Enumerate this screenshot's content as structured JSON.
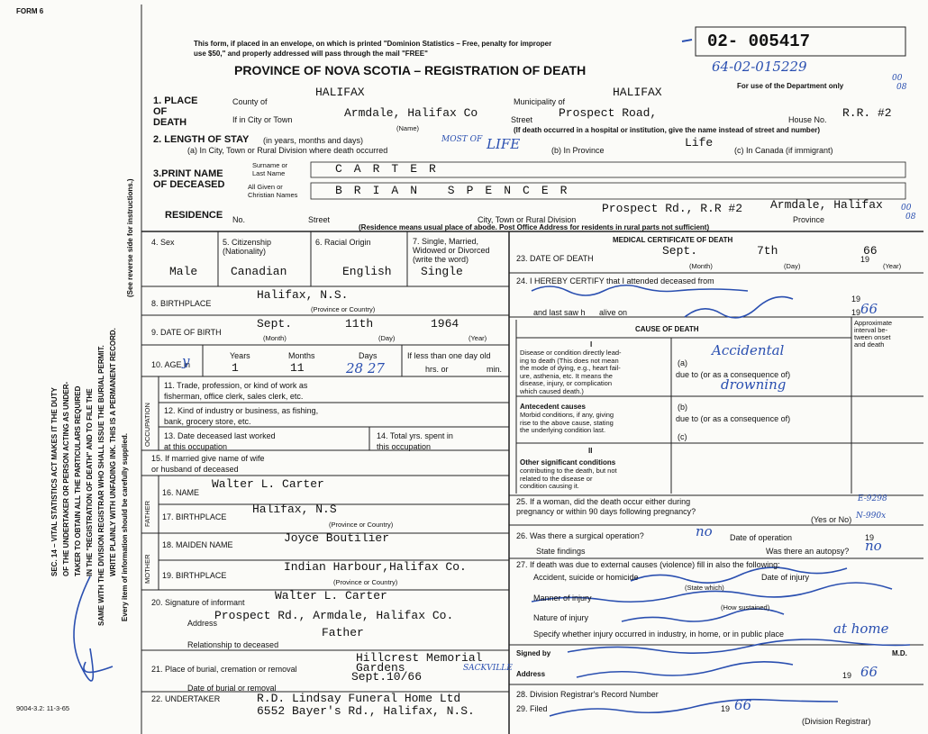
{
  "form_label": "FORM 6",
  "header": {
    "notice": [
      "This form, if placed in an envelope, on which is printed \"Dominion Statistics – Free, penalty for improper",
      "use $50,\" and properly addressed will pass through the mail \"FREE\""
    ],
    "title": "PROVINCE OF NOVA SCOTIA – REGISTRATION OF DEATH",
    "registration_number": "02- 005417",
    "file_number": "64-02-015229",
    "department_note": "For use of the Department only",
    "margin_notes": [
      "00",
      "08",
      "00",
      "08"
    ]
  },
  "instructions": {
    "lines": [
      "SEC. 14 – VITAL STATISTICS ACT MAKES IT THE DUTY",
      "OF THE UNDERTAKER OR PERSON ACTING AS UNDER-",
      "TAKER TO OBTAIN ALL THE PARTICULARS REQUIRED",
      "IN THE \"REGISTRATION OF DEATH\" AND TO FILE THE",
      "SAME WITH THE DIVISION REGISTRAR WHO SHALL ISSUE THE BURIAL PERMIT.",
      "WRITE PLAINLY WITH UNFADING INK. THIS IS A PERMANENT RECORD."
    ],
    "reverse_note": "(See reverse side for instructions.)",
    "supply_note": "Every item of information should be carefully supplied."
  },
  "place_of_death": {
    "heading": [
      "1. PLACE",
      "OF",
      "DEATH"
    ],
    "county_label": "County of",
    "county": "HALIFAX",
    "municipality_label": "Municipality of",
    "municipality": "HALIFAX",
    "city_label": "If in City or Town",
    "city": "Armdale, Halifax Co",
    "name_label": "(Name)",
    "street_label": "Street",
    "street": "Prospect Road,",
    "house_label": "House No.",
    "house": "R.R. #2",
    "institution_note": "(If death occurred in a hospital or institution, give the name instead of street and number)"
  },
  "stay": {
    "heading": "2. LENGTH OF STAY",
    "units": "(in years, months and days)",
    "city_label": "(a) In City, Town or Rural Division where death occurred",
    "city_note": "MOST OF",
    "city": "LIFE",
    "province_label": "(b) In Province",
    "province": "Life",
    "canada_label": "(c) In Canada (if immigrant)"
  },
  "name": {
    "heading": [
      "3.PRINT NAME",
      "OF DECEASED"
    ],
    "surname_label": [
      "Surname or",
      "Last Name"
    ],
    "given_label": [
      "All Given or",
      "Christian Names"
    ],
    "surname": "CARTER",
    "given": "BRIAN SPENCER"
  },
  "residence": {
    "heading": "RESIDENCE",
    "no_label": "No.",
    "street_label": "Street",
    "city_label": "City, Town or Rural Division",
    "province_label": "Province",
    "street": "Prospect Rd., R.R #2",
    "city": "Armdale, Halifax",
    "note": "(Residence means usual place of abode. Post Office Address for residents in rural parts not sufficient)"
  },
  "personal": {
    "sex_label": "4. Sex",
    "sex": "Male",
    "citizenship_label": [
      "5. Citizenship",
      "(Nationality)"
    ],
    "citizenship": "Canadian",
    "origin_label": "6. Racial Origin",
    "origin": "English",
    "marital_label": [
      "7. Single, Married,",
      "Widowed or Divorced",
      "(write the word)"
    ],
    "marital": "Single",
    "birthplace_label": "8. BIRTHPLACE",
    "birthplace": "Halifax, N.S.",
    "birthplace_note": "(Province or Country)",
    "dob_label": "9. DATE OF BIRTH",
    "dob_month": "Sept.",
    "dob_day": "11th",
    "dob_year": "1964",
    "month_label": "(Month)",
    "day_label": "(Day)",
    "year_label": "(Year)",
    "age_label": "10. AGE in",
    "age_mark": "y",
    "years_label": "Years",
    "years": "1",
    "months_label": "Months",
    "months": "11",
    "days_label": "Days",
    "days": "28 27",
    "infant_label": "If less than one day old",
    "hrs_label": "hrs. or",
    "min_label": "min."
  },
  "occupation": {
    "section": "OCCUPATION",
    "trade": [
      "11. Trade, profession, or kind of work as",
      "fisherman, office clerk, sales clerk, etc."
    ],
    "industry": [
      "12. Kind of industry or business, as fishing,",
      "bank, grocery store, etc."
    ],
    "last_worked": [
      "13. Date deceased last worked",
      "at this occupation"
    ],
    "years": [
      "14. Total yrs. spent in",
      "this occupation"
    ],
    "spouse": [
      "15. If married give name of wife",
      "or husband of deceased"
    ]
  },
  "parents": {
    "father_section": "FATHER",
    "father_name_label": "16. NAME",
    "father_name": "Walter L. Carter",
    "father_birthplace_label": "17. BIRTHPLACE",
    "father_birthplace": "Halifax, N.S",
    "father_birthplace_note": "(Province or Country)",
    "mother_section": "MOTHER",
    "maiden_label": "18. MAIDEN NAME",
    "maiden": "Joyce Boutilier",
    "mother_birthplace_label": "19. BIRTHPLACE",
    "mother_birthplace": "Indian Harbour,Halifax Co.",
    "mother_birthplace_note": "(Province or Country)"
  },
  "informant": {
    "signature_label": "20. Signature of informant",
    "name": "Walter L. Carter",
    "address_label": "Address",
    "address": "Prospect Rd., Armdale, Halifax Co.",
    "relationship": "Father",
    "relationship_label": "Relationship to deceased"
  },
  "burial": {
    "place_label": "21. Place of burial, cremation or removal",
    "place": [
      "Hillcrest Memorial",
      "Gardens"
    ],
    "place_note": "SACKVILLE",
    "date_label": "Date of burial or removal",
    "date": "Sept.10/66",
    "undertaker_label": "22. UNDERTAKER",
    "undertaker": [
      "R.D. Lindsay Funeral Home Ltd",
      "6552 Bayer's Rd., Halifax, N.S."
    ]
  },
  "footer_code": "9004-3.2: 11-3-65",
  "medical": {
    "heading": "MEDICAL CERTIFICATE OF DEATH",
    "death_label": "23. DATE OF DEATH",
    "death_month": "Sept.",
    "death_day": "7th",
    "death_century": "19",
    "death_year": "66",
    "month_label": "(Month)",
    "day_label": "(Day)",
    "year_label": "(Year)",
    "certify_label": "24. I HEREBY CERTIFY that I attended deceased from",
    "certify_century": "19",
    "last_saw_label": "and last saw h",
    "alive_label": "alive on",
    "last_saw_century": "19",
    "last_saw_year": "66",
    "cause_heading": "CAUSE OF DEATH",
    "interval_label": [
      "Approximate",
      "interval be-",
      "tween onset",
      "and death"
    ],
    "part_one": "I",
    "direct_label": [
      "Disease or condition directly lead-",
      "ing to death (This does not mean",
      "the mode of dying, e.g., heart fail-",
      "ure, asthenia, etc. It means the",
      "disease, injury, or complication",
      "which caused death.)"
    ],
    "a_label": "(a)",
    "due_to_1": "due to (or as a consequence of)",
    "cause_a": "Accidental",
    "cause_a2": "drowning",
    "antecedent_heading": "Antecedent causes",
    "antecedent_label": [
      "Morbid conditions, if any, giving",
      "rise to the above cause, stating",
      "the underlying condition last."
    ],
    "b_label": "(b)",
    "due_to_2": "due to (or as a consequence of)",
    "c_label": "(c)",
    "part_two": "II",
    "other_heading": "Other significant conditions",
    "other_label": [
      "contributing to the death, but not",
      "related to the disease or",
      "condition causing it."
    ],
    "pregnancy_label": [
      "25. If a woman, did the death occur either during",
      "pregnancy or within 90 days following pregnancy?"
    ],
    "yes_no": "(Yes or No)",
    "code_1": "E-9298",
    "code_2": "N-990x",
    "operation_label": "26. Was there a surgical operation?",
    "operation": "no",
    "operation_date_label": "Date of operation",
    "operation_century": "19",
    "findings_label": "State findings",
    "autopsy_label": "Was there an autopsy?",
    "autopsy": "no",
    "external_label": "27. If death was due to external causes (violence) fill in also the following:",
    "accident_label": "Accident, suicide or homicide",
    "injury_date_label": "Date of injury",
    "state_which": "(State which)",
    "manner_label": "Manner of injury",
    "how_sustained": "(How sustained)",
    "nature_label": "Nature of injury",
    "specify_label": "Specify whether injury occurred in industry, in home, or in public place",
    "place_of_injury": "at home",
    "signed_label": "Signed by",
    "md": "M.D.",
    "address_label": "Address",
    "address_century": "19",
    "address_year": "66",
    "record_label": "28. Division Registrar's Record Number",
    "filed_label": "29. Filed",
    "filed_century": "19",
    "filed_year": "66",
    "registrar_label": "(Division Registrar)"
  }
}
